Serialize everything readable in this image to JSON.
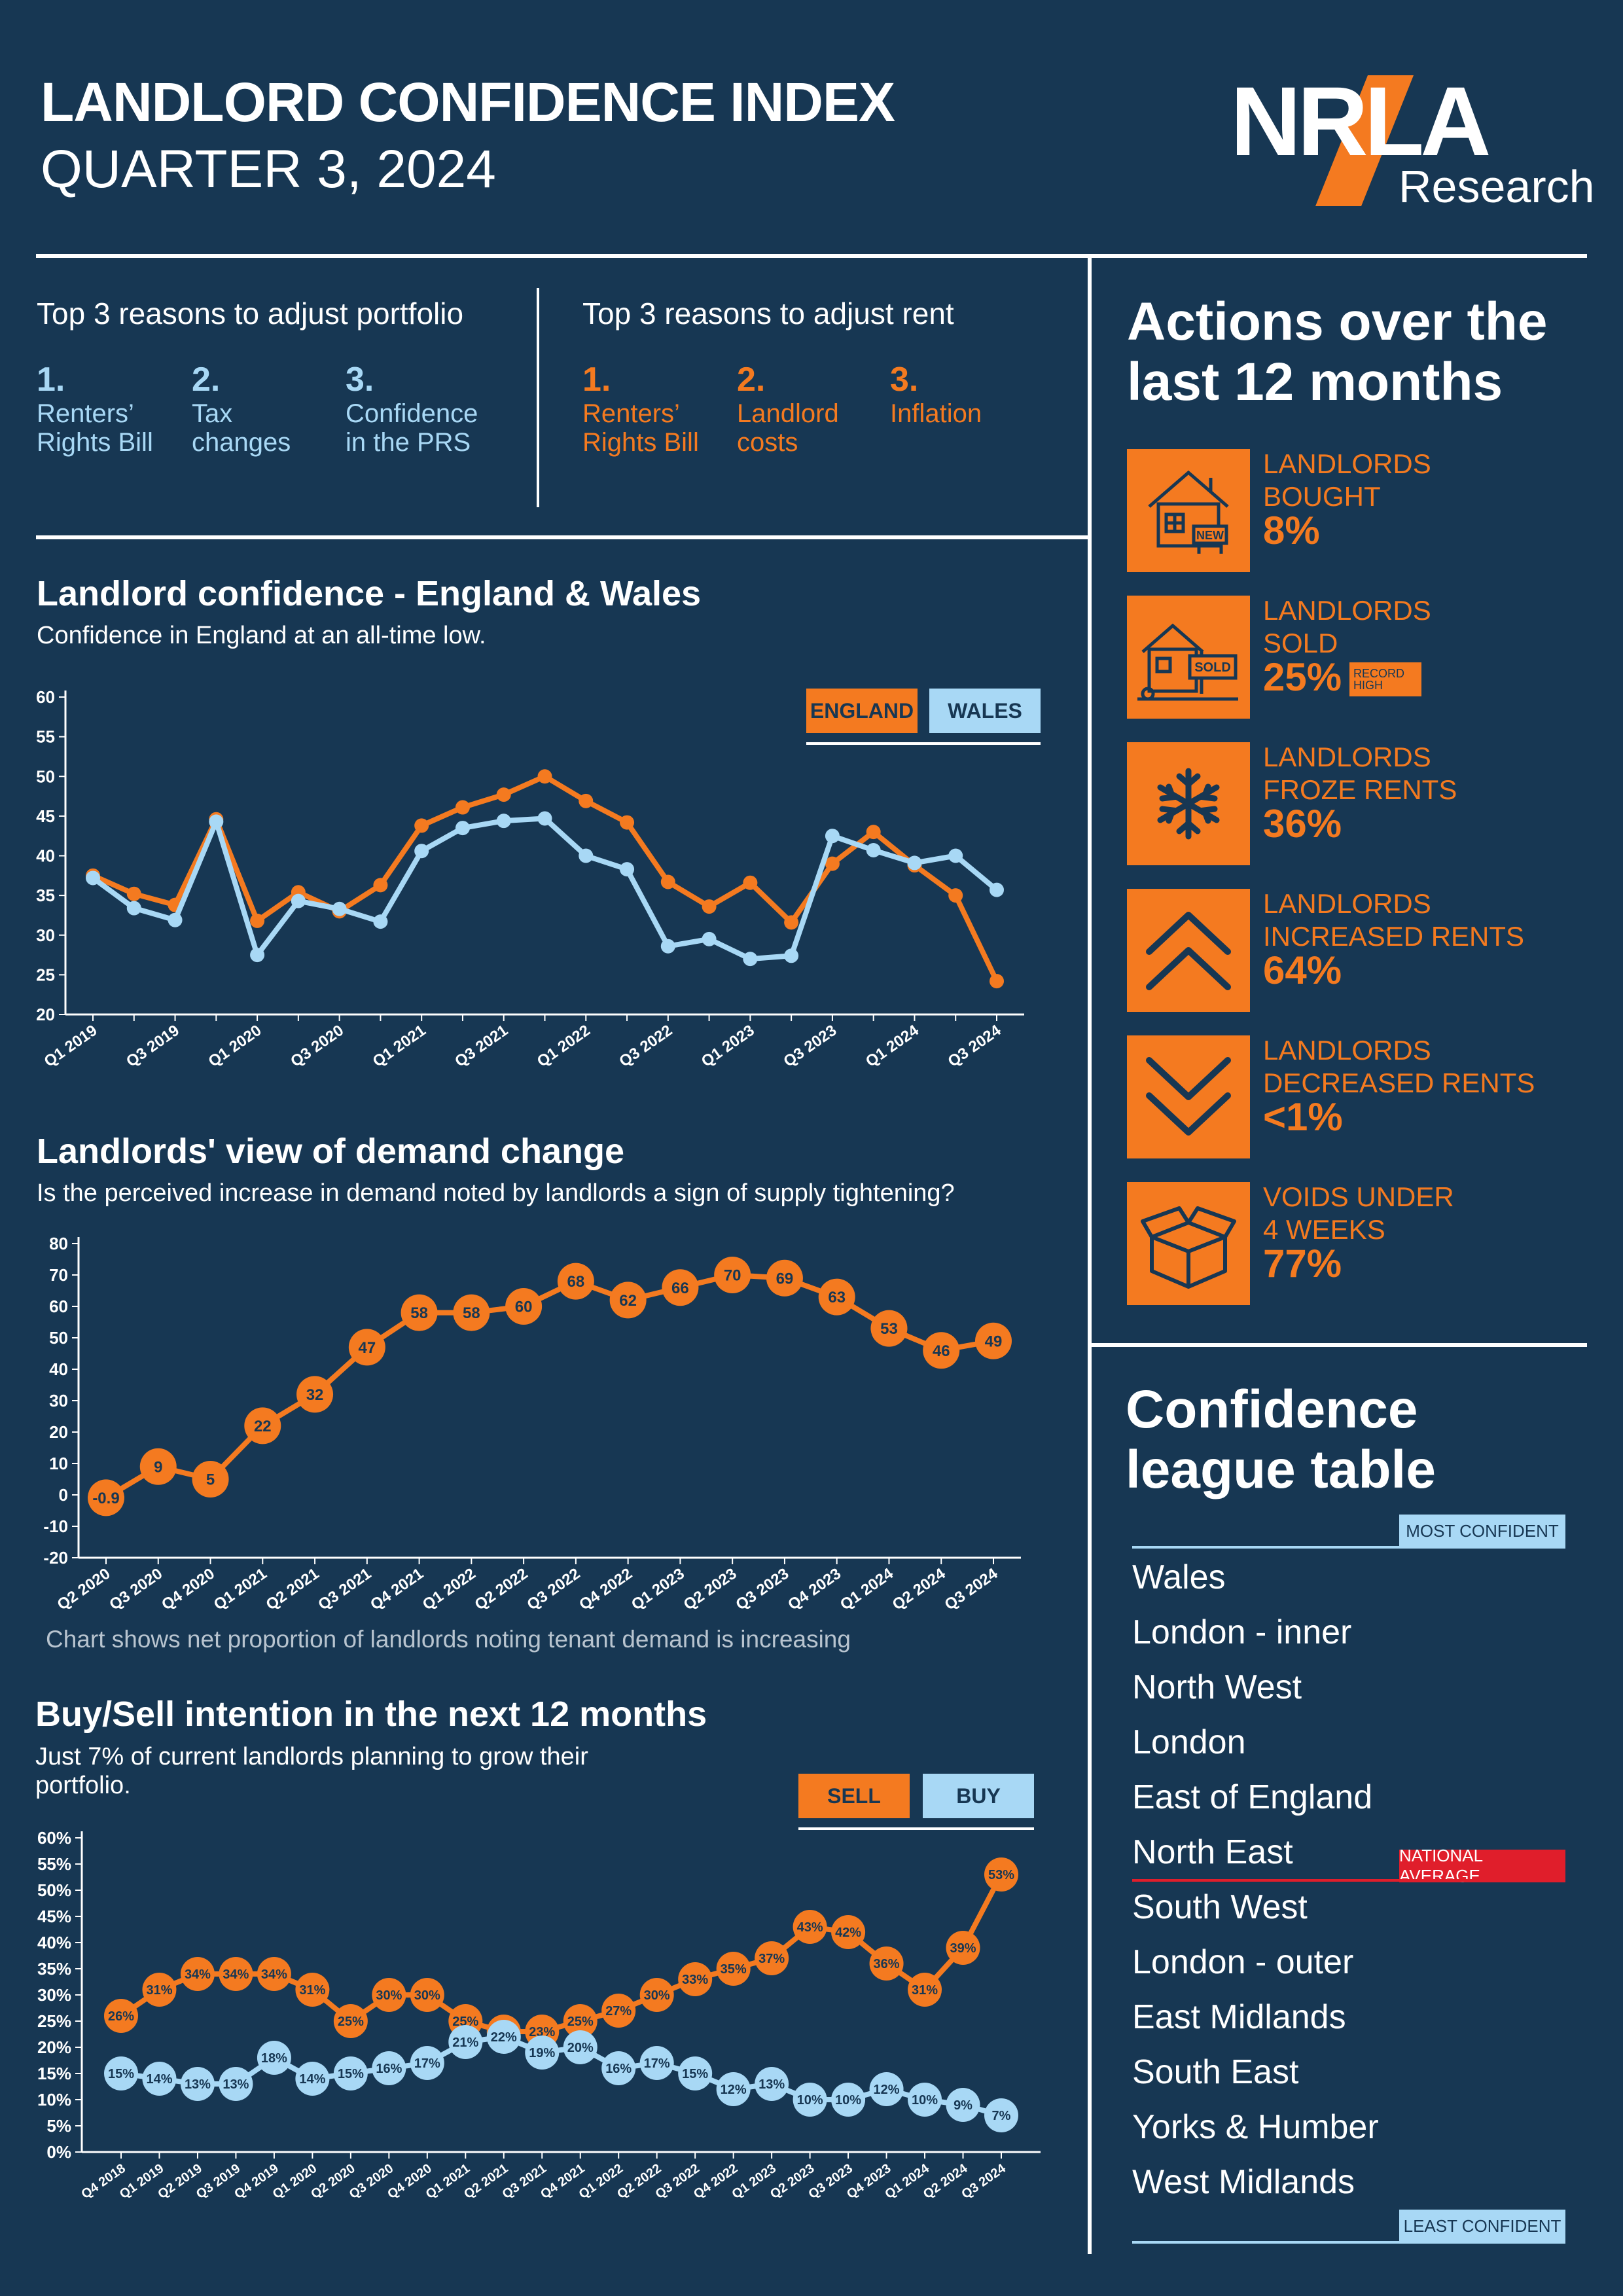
{
  "header": {
    "title": "LANDLORD CONFIDENCE INDEX",
    "subtitle": "QUARTER 3, 2024",
    "logo_text": "NRLA",
    "logo_sub": "Research"
  },
  "reasons": {
    "portfolio": {
      "title": "Top 3 reasons to adjust portfolio",
      "items": [
        {
          "num": "1.",
          "label": "Renters’\nRights Bill"
        },
        {
          "num": "2.",
          "label": "Tax\nchanges"
        },
        {
          "num": "3.",
          "label": "Confidence\nin the PRS"
        }
      ]
    },
    "rent": {
      "title": "Top 3 reasons to adjust rent",
      "items": [
        {
          "num": "1.",
          "label": "Renters’\nRights Bill"
        },
        {
          "num": "2.",
          "label": "Landlord\ncosts"
        },
        {
          "num": "3.",
          "label": "Inflation"
        }
      ]
    }
  },
  "actions": {
    "title": "Actions over the\nlast 12 months",
    "items": [
      {
        "icon": "house-new-icon",
        "label": "LANDLORDS\nBOUGHT",
        "value": "8%"
      },
      {
        "icon": "house-sold-icon",
        "label": "LANDLORDS\nSOLD",
        "value": "25%",
        "badge": "RECORD\nHIGH"
      },
      {
        "icon": "snowflake-icon",
        "label": "LANDLORDS\nFROZE RENTS",
        "value": "36%"
      },
      {
        "icon": "chevron-up-icon",
        "label": "LANDLORDS\nINCREASED RENTS",
        "value": "64%"
      },
      {
        "icon": "chevron-down-icon",
        "label": "LANDLORDS\nDECREASED RENTS",
        "value": "<1%"
      },
      {
        "icon": "open-box-icon",
        "label": "VOIDS UNDER\n4 WEEKS",
        "value": "77%"
      }
    ]
  },
  "league": {
    "title": "Confidence\nleague table",
    "most_label": "MOST CONFIDENT",
    "least_label": "LEAST CONFIDENT",
    "average_label": "NATIONAL AVERAGE",
    "items": [
      "Wales",
      "London - inner",
      "North West",
      "London",
      "East of England",
      "North East",
      "South West",
      "London - outer",
      "East Midlands",
      "South East",
      "Yorks & Humber",
      "West Midlands"
    ]
  },
  "colors": {
    "orange": "#f47a20",
    "blue": "#a8d8f5",
    "background": "#173753",
    "red": "#e01e2b"
  },
  "chart_data": [
    {
      "type": "line",
      "title": "Landlord confidence - England & Wales",
      "subtitle": "Confidence in England at an all-time low.",
      "categories": [
        "Q1 2019",
        "Q2 2019",
        "Q3 2019",
        "Q4 2019",
        "Q1 2020",
        "Q2 2020",
        "Q3 2020",
        "Q4 2020",
        "Q1 2021",
        "Q2 2021",
        "Q3 2021",
        "Q4 2021",
        "Q1 2022",
        "Q2 2022",
        "Q3 2022",
        "Q4 2022",
        "Q1 2023",
        "Q2 2023",
        "Q3 2023",
        "Q4 2023",
        "Q1 2024",
        "Q2 2024",
        "Q3 2024"
      ],
      "tick_labels": [
        "Q1 2019",
        "",
        "Q3 2019",
        "",
        "Q1 2020",
        "",
        "Q3 2020",
        "",
        "Q1 2021",
        "",
        "Q3 2021",
        "",
        "Q1 2022",
        "",
        "Q3 2022",
        "",
        "Q1 2023",
        "",
        "Q3 2023",
        "",
        "Q1 2024",
        "",
        "Q3 2024"
      ],
      "series": [
        {
          "name": "ENGLAND",
          "color": "#f47a20",
          "values": [
            37.5,
            35.2,
            33.8,
            44.6,
            31.8,
            35.4,
            33.0,
            36.3,
            43.8,
            46.1,
            47.7,
            50.0,
            46.9,
            44.2,
            36.7,
            33.6,
            36.6,
            31.6,
            39.0,
            43.0,
            38.8,
            35.0,
            24.2
          ]
        },
        {
          "name": "WALES",
          "color": "#a8d8f5",
          "values": [
            37.2,
            33.4,
            31.9,
            44.3,
            27.5,
            34.3,
            33.3,
            31.7,
            40.6,
            43.5,
            44.4,
            44.7,
            40.0,
            38.3,
            28.6,
            29.5,
            27.0,
            27.4,
            42.5,
            40.7,
            39.1,
            40.0,
            35.7
          ]
        }
      ],
      "ylim": [
        20,
        60
      ],
      "yticks": [
        20,
        25,
        30,
        35,
        40,
        45,
        50,
        55,
        60
      ]
    },
    {
      "type": "line",
      "title": "Landlords' view of demand change",
      "subtitle": "Is the perceived increase in demand noted by landlords a sign of supply tightening?",
      "note": "Chart shows net proportion of landlords noting tenant demand is increasing",
      "categories": [
        "Q2 2020",
        "Q3 2020",
        "Q4 2020",
        "Q1 2021",
        "Q2 2021",
        "Q3 2021",
        "Q4 2021",
        "Q1 2022",
        "Q2 2022",
        "Q3 2022",
        "Q4 2022",
        "Q1 2023",
        "Q2 2023",
        "Q3 2023",
        "Q4 2023",
        "Q1 2024",
        "Q2 2024",
        "Q3 2024"
      ],
      "series": [
        {
          "name": "Net demand",
          "color": "#f47a20",
          "values": [
            -0.9,
            9,
            5,
            22,
            32,
            47,
            58,
            58,
            60,
            68,
            62,
            66,
            70,
            69,
            63,
            53,
            46,
            49
          ],
          "labels": [
            "-0.9",
            "9",
            "5",
            "22",
            "32",
            "47",
            "58",
            "58",
            "60",
            "68",
            "62",
            "66",
            "70",
            "69",
            "63",
            "53",
            "46",
            "49"
          ]
        }
      ],
      "ylim": [
        -20,
        80
      ],
      "yticks": [
        -20,
        -10,
        0,
        10,
        20,
        30,
        40,
        50,
        60,
        70,
        80
      ]
    },
    {
      "type": "line",
      "title": "Buy/Sell intention in the next 12 months",
      "subtitle": "Just 7% of current landlords planning to grow their\nportfolio.",
      "categories": [
        "Q4 2018",
        "Q1 2019",
        "Q2 2019",
        "Q3 2019",
        "Q4 2019",
        "Q1 2020",
        "Q2 2020",
        "Q3 2020",
        "Q4 2020",
        "Q1 2021",
        "Q2 2021",
        "Q3 2021",
        "Q4 2021",
        "Q1 2022",
        "Q2 2022",
        "Q3 2022",
        "Q4 2022",
        "Q1 2023",
        "Q2 2023",
        "Q3 2023",
        "Q4 2023",
        "Q1 2024",
        "Q2 2024",
        "Q3 2024"
      ],
      "series": [
        {
          "name": "SELL",
          "color": "#f47a20",
          "values": [
            26,
            31,
            34,
            34,
            34,
            31,
            25,
            30,
            30,
            25,
            23,
            23,
            25,
            27,
            30,
            33,
            35,
            37,
            43,
            42,
            36,
            31,
            39,
            53
          ]
        },
        {
          "name": "BUY",
          "color": "#a8d8f5",
          "values": [
            15,
            14,
            13,
            13,
            18,
            14,
            15,
            16,
            17,
            21,
            22,
            19,
            20,
            16,
            17,
            15,
            12,
            13,
            10,
            10,
            12,
            10,
            9,
            7
          ]
        }
      ],
      "ylim": [
        0,
        60
      ],
      "yticks": [
        0,
        5,
        10,
        15,
        20,
        25,
        30,
        35,
        40,
        45,
        50,
        55,
        60
      ],
      "ytick_suffix": "%"
    }
  ]
}
